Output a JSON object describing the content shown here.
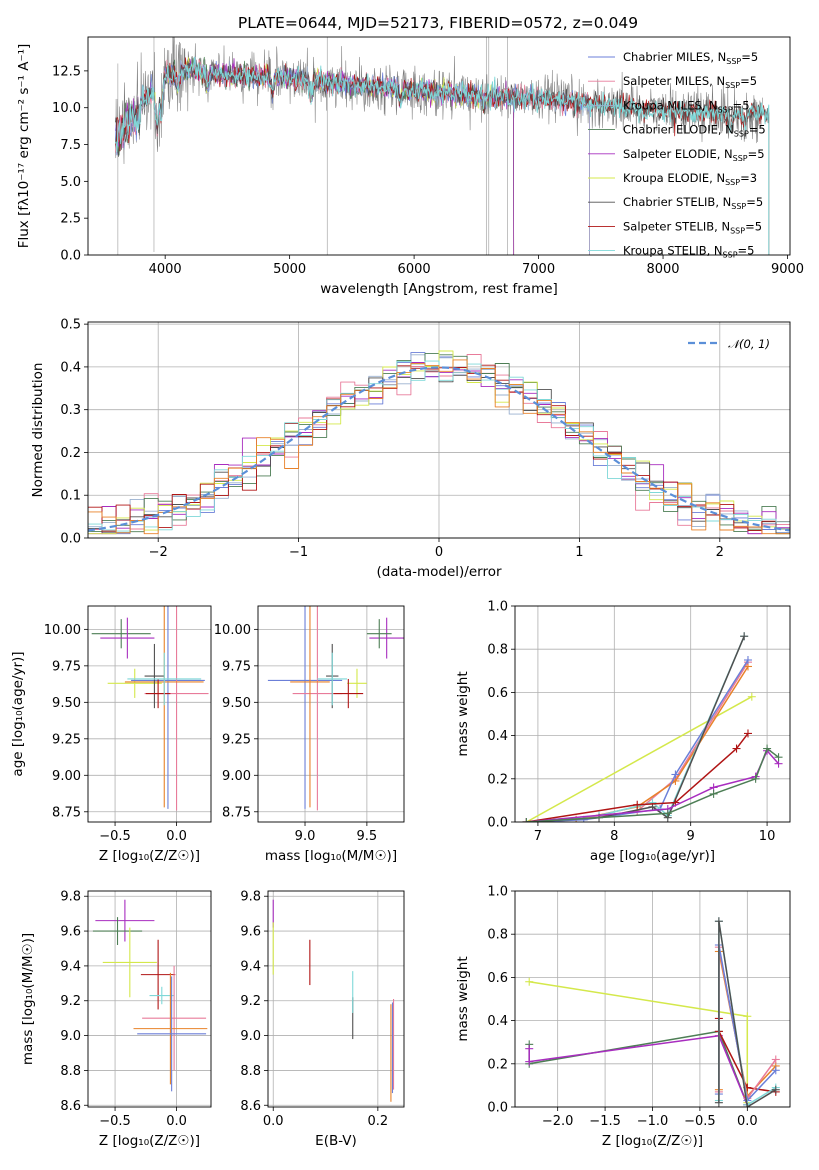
{
  "figure": {
    "title": "PLATE=0644, MJD=52173, FIBERID=0572, z=0.049"
  },
  "colors": {
    "Chabrier MILES": "#6b7fd8",
    "Salpeter MILES": "#e87b9a",
    "Kroupa MILES": "#9ab0cf",
    "Chabrier ELODIE": "#4d7e55",
    "Salpeter ELODIE": "#a82dbf",
    "Kroupa ELODIE": "#d4e84b",
    "Chabrier STELIB": "#505050",
    "Salpeter STELIB": "#b01515",
    "Kroupa STELIB": "#7fd8d8",
    "extra_orange": "#e8822a",
    "gauss": "#5b8fd8"
  },
  "chart_data": [
    {
      "id": "spectrum",
      "type": "line",
      "xlabel": "wavelength [Angstrom, rest frame]",
      "ylabel": "Flux [fλ10⁻¹⁷ erg cm⁻² s⁻¹ A⁻¹]",
      "xlim": [
        3380,
        9020
      ],
      "ylim": [
        0,
        14.8
      ],
      "xticks": [
        4000,
        5000,
        6000,
        7000,
        8000,
        9000
      ],
      "yticks": [
        0.0,
        2.5,
        5.0,
        7.5,
        10.0,
        12.5
      ],
      "legend_position": "top-right",
      "legend": [
        {
          "name": "Chabrier MILES",
          "nssp": "5"
        },
        {
          "name": "Salpeter MILES",
          "nssp": "5"
        },
        {
          "name": "Kroupa MILES",
          "nssp": "5"
        },
        {
          "name": "Chabrier ELODIE",
          "nssp": "5"
        },
        {
          "name": "Salpeter ELODIE",
          "nssp": "5"
        },
        {
          "name": "Kroupa ELODIE",
          "nssp": "3"
        },
        {
          "name": "Chabrier STELIB",
          "nssp": "5"
        },
        {
          "name": "Salpeter STELIB",
          "nssp": "5"
        },
        {
          "name": "Kroupa STELIB",
          "nssp": "5"
        }
      ],
      "continuum_knots": {
        "x": [
          3600,
          3700,
          3800,
          3900,
          4000,
          4200,
          4500,
          5000,
          5500,
          6000,
          6500,
          7000,
          7500,
          8000,
          8500,
          8800
        ],
        "y": [
          9.0,
          10.0,
          10.5,
          11.0,
          12.2,
          12.6,
          12.2,
          12.0,
          11.6,
          11.2,
          10.8,
          10.6,
          10.2,
          9.8,
          9.6,
          9.6
        ]
      },
      "model_ranges": {
        "Chabrier MILES": [
          3600,
          7410
        ],
        "Salpeter MILES": [
          3600,
          7410
        ],
        "Kroupa MILES": [
          3600,
          7410
        ],
        "Chabrier ELODIE": [
          3600,
          6800
        ],
        "Salpeter ELODIE": [
          3600,
          6800
        ],
        "Kroupa ELODIE": [
          3900,
          6800
        ],
        "Chabrier STELIB": [
          3600,
          8850
        ],
        "Salpeter STELIB": [
          3600,
          8850
        ],
        "Kroupa STELIB": [
          3600,
          8850
        ]
      }
    },
    {
      "id": "residuals",
      "type": "line",
      "xlabel": "(data-model)/error",
      "ylabel": "Normed distribution",
      "xlim": [
        -2.5,
        2.5
      ],
      "ylim": [
        0,
        0.505
      ],
      "xticks": [
        -2,
        -1,
        0,
        1,
        2
      ],
      "yticks": [
        0.0,
        0.1,
        0.2,
        0.3,
        0.4,
        0.5
      ],
      "legend_position": "top-right",
      "gauss_label": "𝒩(0, 1)",
      "bin_width": 0.1
    },
    {
      "id": "age_vs_Z",
      "type": "scatter",
      "xlabel": "Z [log₁₀(Z/Z☉)]",
      "ylabel": "age  [log₁₀(age/yr)]",
      "xlim": [
        -0.72,
        0.28
      ],
      "ylim": [
        8.68,
        10.16
      ],
      "xticks": [
        -0.5,
        0.0
      ],
      "yticks": [
        8.75,
        9.0,
        9.25,
        9.5,
        9.75,
        10.0
      ],
      "points": [
        {
          "series": "Chabrier ELODIE",
          "x": -0.45,
          "y": 9.97,
          "xerr": 0.24,
          "yerr": 0.1
        },
        {
          "series": "Salpeter ELODIE",
          "x": -0.4,
          "y": 9.94,
          "xerr": 0.22,
          "yerr": 0.14
        },
        {
          "series": "Kroupa ELODIE",
          "x": -0.34,
          "y": 9.63,
          "xerr": 0.22,
          "yerr": 0.1
        },
        {
          "series": "Chabrier MILES",
          "x": -0.07,
          "y": 9.65,
          "xerr": 0.3,
          "yerr": 0.88
        },
        {
          "series": "Salpeter MILES",
          "x": 0.0,
          "y": 9.56,
          "xerr": 0.26,
          "yerr": 0.8
        },
        {
          "series": "extra_orange",
          "x": -0.1,
          "y": 9.64,
          "xerr": 0.32,
          "yerr": 0.86
        },
        {
          "series": "Chabrier STELIB",
          "x": -0.18,
          "y": 9.68,
          "xerr": 0.08,
          "yerr": 0.22
        },
        {
          "series": "Salpeter STELIB",
          "x": -0.15,
          "y": 9.56,
          "xerr": 0.1,
          "yerr": 0.1
        },
        {
          "series": "Kroupa STELIB",
          "x": -0.1,
          "y": 9.66,
          "xerr": 0.3,
          "yerr": 0.18
        }
      ]
    },
    {
      "id": "age_vs_mass",
      "type": "scatter",
      "xlabel": "mass [log₁₀(M/M☉)]",
      "ylabel": "",
      "xlim": [
        8.62,
        9.8
      ],
      "ylim": [
        8.68,
        10.16
      ],
      "xticks": [
        9.0,
        9.5
      ],
      "yticks": [
        8.75,
        9.0,
        9.25,
        9.5,
        9.75,
        10.0
      ],
      "points": [
        {
          "series": "Salpeter ELODIE",
          "x": 9.66,
          "y": 9.94,
          "xerr": 0.14,
          "yerr": 0.14
        },
        {
          "series": "Chabrier ELODIE",
          "x": 9.6,
          "y": 9.97,
          "xerr": 0.1,
          "yerr": 0.1
        },
        {
          "series": "Kroupa ELODIE",
          "x": 9.42,
          "y": 9.63,
          "xerr": 0.08,
          "yerr": 0.1
        },
        {
          "series": "Chabrier MILES",
          "x": 9.0,
          "y": 9.65,
          "xerr": 0.3,
          "yerr": 0.88
        },
        {
          "series": "Salpeter MILES",
          "x": 9.1,
          "y": 9.56,
          "xerr": 0.2,
          "yerr": 0.8
        },
        {
          "series": "extra_orange",
          "x": 9.04,
          "y": 9.64,
          "xerr": 0.16,
          "yerr": 0.86
        },
        {
          "series": "Chabrier STELIB",
          "x": 9.22,
          "y": 9.68,
          "xerr": 0.05,
          "yerr": 0.22
        },
        {
          "series": "Salpeter STELIB",
          "x": 9.35,
          "y": 9.56,
          "xerr": 0.12,
          "yerr": 0.1
        },
        {
          "series": "Kroupa STELIB",
          "x": 9.22,
          "y": 9.66,
          "xerr": 0.12,
          "yerr": 0.18
        }
      ]
    },
    {
      "id": "weight_vs_age",
      "type": "line",
      "xlabel": "age  [log₁₀(age/yr)]",
      "ylabel": "mass weight",
      "xlim": [
        6.7,
        10.3
      ],
      "ylim": [
        0,
        1.0
      ],
      "xticks": [
        7,
        8,
        9,
        10
      ],
      "yticks": [
        0.0,
        0.2,
        0.4,
        0.6,
        0.8,
        1.0
      ],
      "series": [
        {
          "name": "Kroupa ELODIE",
          "x": [
            6.85,
            9.8
          ],
          "y": [
            0.0,
            0.58
          ]
        },
        {
          "name": "Salpeter MILES",
          "x": [
            6.85,
            7.5,
            8.3,
            8.8,
            9.75
          ],
          "y": [
            0.0,
            0.01,
            0.05,
            0.2,
            0.74
          ]
        },
        {
          "name": "extra_orange",
          "x": [
            6.85,
            7.5,
            8.3,
            8.8,
            9.75
          ],
          "y": [
            0.0,
            0.01,
            0.07,
            0.19,
            0.72
          ]
        },
        {
          "name": "Chabrier MILES",
          "x": [
            6.85,
            7.6,
            8.6,
            8.8,
            9.75
          ],
          "y": [
            0.0,
            0.01,
            0.06,
            0.22,
            0.75
          ]
        },
        {
          "name": "Kroupa STELIB",
          "x": [
            6.85,
            7.8,
            8.5,
            8.7,
            9.7
          ],
          "y": [
            0.0,
            0.03,
            0.09,
            0.03,
            0.86
          ]
        },
        {
          "name": "Chabrier STELIB",
          "x": [
            6.85,
            7.8,
            8.5,
            8.7,
            9.7
          ],
          "y": [
            0.0,
            0.02,
            0.07,
            0.02,
            0.86
          ]
        },
        {
          "name": "Salpeter STELIB",
          "x": [
            6.85,
            8.3,
            8.8,
            9.6,
            9.75
          ],
          "y": [
            0.0,
            0.08,
            0.09,
            0.34,
            0.41
          ]
        },
        {
          "name": "Salpeter ELODIE",
          "x": [
            6.85,
            8.7,
            9.3,
            9.85,
            10.0,
            10.15
          ],
          "y": [
            0.0,
            0.06,
            0.16,
            0.21,
            0.33,
            0.27
          ]
        },
        {
          "name": "Chabrier ELODIE",
          "x": [
            6.85,
            8.7,
            9.3,
            9.85,
            10.0,
            10.15
          ],
          "y": [
            0.0,
            0.04,
            0.13,
            0.2,
            0.34,
            0.3
          ]
        }
      ]
    },
    {
      "id": "mass_vs_Z",
      "type": "scatter",
      "xlabel": "Z [log₁₀(Z/Z☉)]",
      "ylabel": "mass [log₁₀(M/M☉)]",
      "xlim": [
        -0.72,
        0.28
      ],
      "ylim": [
        8.59,
        9.83
      ],
      "xticks": [
        -0.5,
        0.0
      ],
      "yticks": [
        8.6,
        8.8,
        9.0,
        9.2,
        9.4,
        9.6,
        9.8
      ],
      "points": [
        {
          "series": "Salpeter ELODIE",
          "x": -0.42,
          "y": 9.66,
          "xerr": 0.24,
          "yerr": 0.12
        },
        {
          "series": "Chabrier ELODIE",
          "x": -0.48,
          "y": 9.6,
          "xerr": 0.2,
          "yerr": 0.08
        },
        {
          "series": "Kroupa ELODIE",
          "x": -0.38,
          "y": 9.42,
          "xerr": 0.22,
          "yerr": 0.2
        },
        {
          "series": "Salpeter STELIB",
          "x": -0.15,
          "y": 9.35,
          "xerr": 0.14,
          "yerr": 0.2
        },
        {
          "series": "Kroupa STELIB",
          "x": -0.12,
          "y": 9.23,
          "xerr": 0.1,
          "yerr": 0.05
        },
        {
          "series": "Salpeter MILES",
          "x": -0.02,
          "y": 9.1,
          "xerr": 0.26,
          "yerr": 0.3
        },
        {
          "series": "extra_orange",
          "x": -0.05,
          "y": 9.04,
          "xerr": 0.3,
          "yerr": 0.32
        },
        {
          "series": "Chabrier MILES",
          "x": -0.04,
          "y": 9.01,
          "xerr": 0.28,
          "yerr": 0.33
        }
      ]
    },
    {
      "id": "mass_vs_EBV",
      "type": "scatter",
      "xlabel": "E(B-V)",
      "ylabel": "",
      "xlim": [
        -0.01,
        0.25
      ],
      "ylim": [
        8.59,
        9.83
      ],
      "xticks": [
        0.0,
        0.2
      ],
      "yticks": [
        8.6,
        8.8,
        9.0,
        9.2,
        9.4,
        9.6,
        9.8
      ],
      "points": [
        {
          "series": "Salpeter ELODIE",
          "x": 0.0,
          "y": 9.7,
          "xerr": 0.0,
          "yerr": 0.08
        },
        {
          "series": "Kroupa ELODIE",
          "x": 0.0,
          "y": 9.5,
          "xerr": 0.0,
          "yerr": 0.15
        },
        {
          "series": "Salpeter STELIB",
          "x": 0.07,
          "y": 9.42,
          "xerr": 0.0,
          "yerr": 0.13
        },
        {
          "series": "Chabrier STELIB",
          "x": 0.152,
          "y": 9.1,
          "xerr": 0.0,
          "yerr": 0.12
        },
        {
          "series": "Kroupa STELIB",
          "x": 0.152,
          "y": 9.25,
          "xerr": 0.0,
          "yerr": 0.12
        },
        {
          "series": "Salpeter MILES",
          "x": 0.23,
          "y": 8.95,
          "xerr": 0.0,
          "yerr": 0.26
        },
        {
          "series": "extra_orange",
          "x": 0.225,
          "y": 8.9,
          "xerr": 0.0,
          "yerr": 0.28
        },
        {
          "series": "Chabrier MILES",
          "x": 0.228,
          "y": 8.93,
          "xerr": 0.0,
          "yerr": 0.26
        }
      ]
    },
    {
      "id": "weight_vs_Z",
      "type": "line",
      "xlabel": "Z [log₁₀(Z/Z☉)]",
      "ylabel": "mass weight",
      "xlim": [
        -2.45,
        0.45
      ],
      "ylim": [
        0,
        1.0
      ],
      "xticks": [
        -2.0,
        -1.5,
        -1.0,
        -0.5,
        0.0
      ],
      "yticks": [
        0.0,
        0.2,
        0.4,
        0.6,
        0.8,
        1.0
      ],
      "series": [
        {
          "name": "Kroupa ELODIE",
          "x": [
            -2.3,
            0.0,
            0.0
          ],
          "y": [
            0.58,
            0.42,
            0.02
          ]
        },
        {
          "name": "Chabrier ELODIE",
          "x": [
            -2.3,
            -2.3,
            -0.3,
            0.0
          ],
          "y": [
            0.29,
            0.2,
            0.35,
            0.01
          ]
        },
        {
          "name": "Salpeter ELODIE",
          "x": [
            -2.3,
            -2.3,
            -0.3,
            0.0
          ],
          "y": [
            0.27,
            0.21,
            0.33,
            0.01
          ]
        },
        {
          "name": "Salpeter STELIB",
          "x": [
            -0.3,
            -0.3,
            0.0,
            0.3
          ],
          "y": [
            0.41,
            0.35,
            0.09,
            0.07
          ]
        },
        {
          "name": "extra_orange",
          "x": [
            -0.3,
            -0.3,
            0.0,
            0.3
          ],
          "y": [
            0.08,
            0.72,
            0.05,
            0.19
          ]
        },
        {
          "name": "Salpeter MILES",
          "x": [
            -0.3,
            -0.3,
            0.0,
            0.3
          ],
          "y": [
            0.07,
            0.74,
            0.04,
            0.22
          ]
        },
        {
          "name": "Chabrier MILES",
          "x": [
            -0.3,
            -0.3,
            0.0,
            0.3
          ],
          "y": [
            0.06,
            0.75,
            0.03,
            0.17
          ]
        },
        {
          "name": "Kroupa STELIB",
          "x": [
            -0.3,
            -0.3,
            0.0,
            0.3
          ],
          "y": [
            0.03,
            0.86,
            0.01,
            0.09
          ]
        },
        {
          "name": "Chabrier STELIB",
          "x": [
            -0.3,
            -0.3,
            0.0,
            0.3
          ],
          "y": [
            0.02,
            0.86,
            0.0,
            0.08
          ]
        }
      ]
    }
  ]
}
